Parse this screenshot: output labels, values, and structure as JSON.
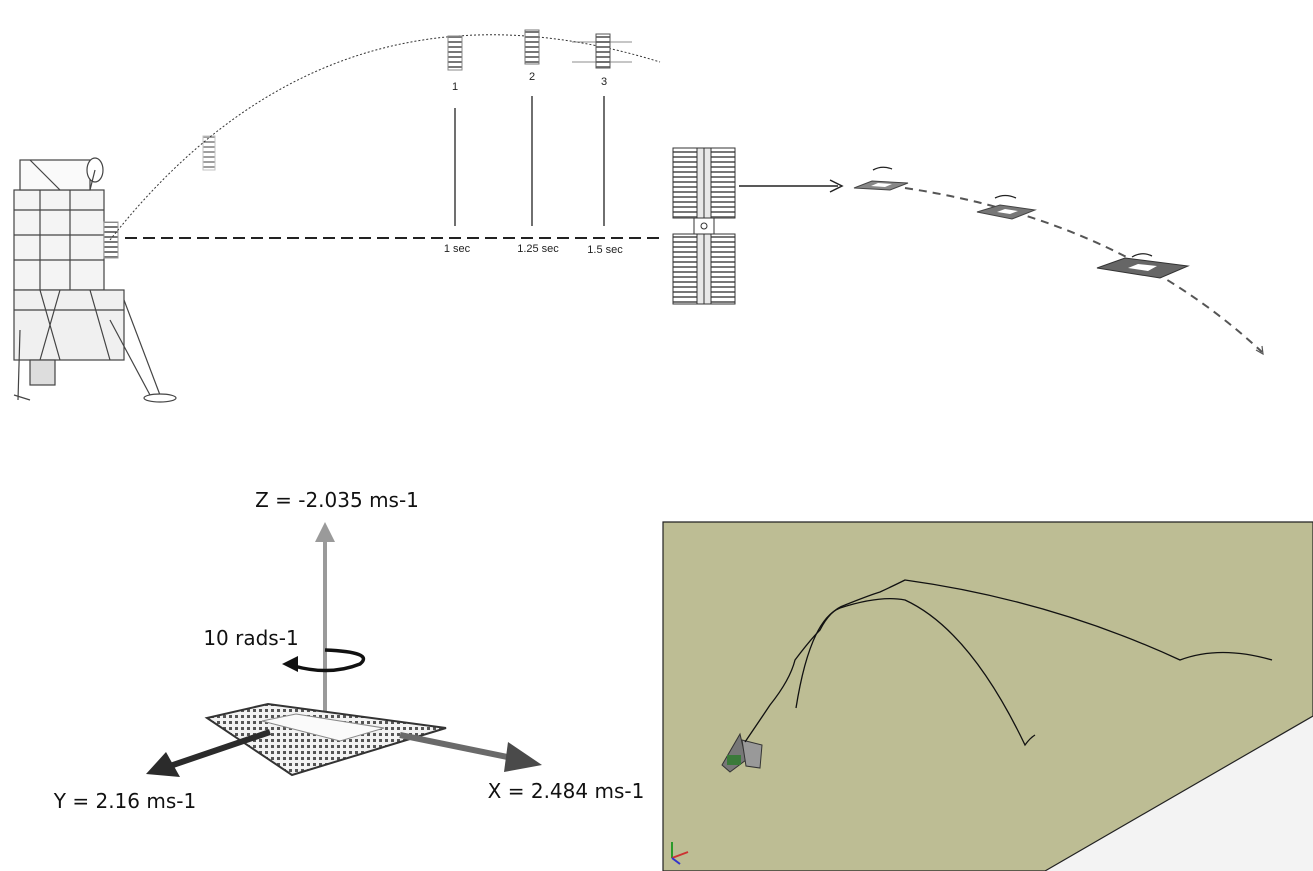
{
  "top": {
    "frame_numbers": [
      "1",
      "2",
      "3"
    ],
    "time_labels": [
      "1 sec",
      "1.25 sec",
      "1.5 sec"
    ]
  },
  "axes": {
    "z_label": "Z = -2.035 ms-1",
    "rotation_label": "10 rads-1",
    "y_label": "Y = 2.16 ms-1",
    "x_label": "X = 2.484 ms-1"
  },
  "colors": {
    "ground_plane": "#bdbd94",
    "arrow_dark": "#2b2b2b",
    "arrow_grey": "#9a9a9a",
    "line": "#222222"
  }
}
